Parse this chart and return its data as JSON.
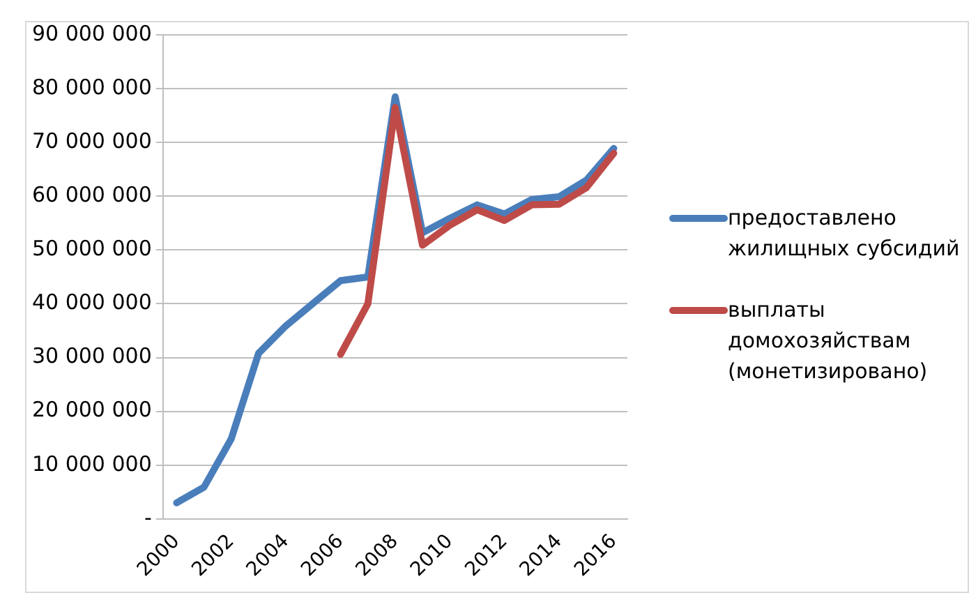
{
  "chart_data": {
    "type": "line",
    "categories": [
      "2000",
      null,
      "2002",
      null,
      "2004",
      null,
      "2006",
      null,
      "2008",
      null,
      "2010",
      null,
      "2012",
      null,
      "2014",
      null,
      "2016"
    ],
    "series": [
      {
        "name": "предоставлено жилищных субсидий",
        "color": "#4a7ebb",
        "values": [
          3000000,
          5900000,
          14900000,
          30800000,
          35900000,
          40100000,
          44300000,
          45000000,
          78500000,
          53200000,
          55900000,
          58400000,
          56700000,
          59400000,
          59900000,
          63000000,
          68900000
        ]
      },
      {
        "name": "выплаты домохозяйствам (монетизировано)",
        "color": "#be4b48",
        "values": [
          null,
          null,
          null,
          null,
          null,
          null,
          30600000,
          40000000,
          76500000,
          50900000,
          54600000,
          57500000,
          55500000,
          58400000,
          58500000,
          61600000,
          68000000
        ]
      }
    ],
    "ylim": [
      0,
      90000000
    ],
    "yticks": [
      {
        "value": 0,
        "label": "-"
      },
      {
        "value": 10000000,
        "label": "10 000 000"
      },
      {
        "value": 20000000,
        "label": "20 000 000"
      },
      {
        "value": 30000000,
        "label": "30 000 000"
      },
      {
        "value": 40000000,
        "label": "40 000 000"
      },
      {
        "value": 50000000,
        "label": "50 000 000"
      },
      {
        "value": 60000000,
        "label": "60 000 000"
      },
      {
        "value": 70000000,
        "label": "70 000 000"
      },
      {
        "value": 80000000,
        "label": "80 000 000"
      },
      {
        "value": 90000000,
        "label": "90 000 000"
      }
    ],
    "grid": "y",
    "legend": "right",
    "marker": "none",
    "line_style": "solid"
  }
}
